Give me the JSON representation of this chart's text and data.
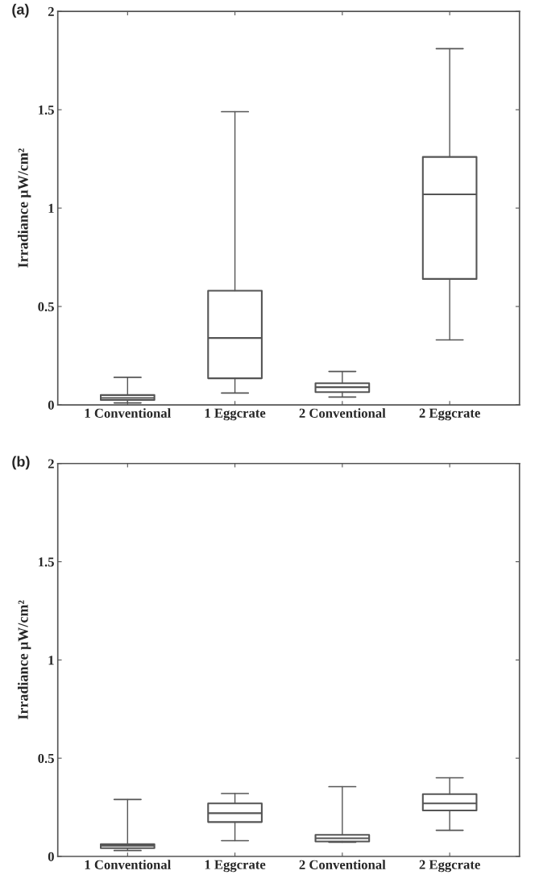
{
  "chart_data": [
    {
      "type": "box",
      "title": "(a)",
      "ylabel": "Irradiance μW/cm²",
      "categories": [
        "1 Conventional",
        "1 Eggcrate",
        "2 Conventional",
        "2 Eggcrate"
      ],
      "ylim": [
        0,
        2
      ],
      "yticks": [
        0,
        0.5,
        1,
        1.5,
        2
      ],
      "boxes": [
        {
          "low": 0.01,
          "q1": 0.025,
          "median": 0.035,
          "q3": 0.05,
          "high": 0.14
        },
        {
          "low": 0.06,
          "q1": 0.135,
          "median": 0.34,
          "q3": 0.58,
          "high": 1.49
        },
        {
          "low": 0.04,
          "q1": 0.065,
          "median": 0.09,
          "q3": 0.11,
          "high": 0.17
        },
        {
          "low": 0.33,
          "q1": 0.64,
          "median": 1.07,
          "q3": 1.26,
          "high": 1.81
        }
      ]
    },
    {
      "type": "box",
      "title": "(b)",
      "ylabel": "Irradiance μW/cm²",
      "categories": [
        "1 Conventional",
        "1 Eggcrate",
        "2 Conventional",
        "2 Eggcrate"
      ],
      "ylim": [
        0,
        2
      ],
      "yticks": [
        0,
        0.5,
        1,
        1.5,
        2
      ],
      "boxes": [
        {
          "low": 0.03,
          "q1": 0.042,
          "median": 0.054,
          "q3": 0.062,
          "high": 0.29
        },
        {
          "low": 0.08,
          "q1": 0.175,
          "median": 0.22,
          "q3": 0.27,
          "high": 0.32
        },
        {
          "low": 0.072,
          "q1": 0.076,
          "median": 0.092,
          "q3": 0.11,
          "high": 0.355
        },
        {
          "low": 0.133,
          "q1": 0.234,
          "median": 0.27,
          "q3": 0.317,
          "high": 0.4
        }
      ]
    }
  ]
}
